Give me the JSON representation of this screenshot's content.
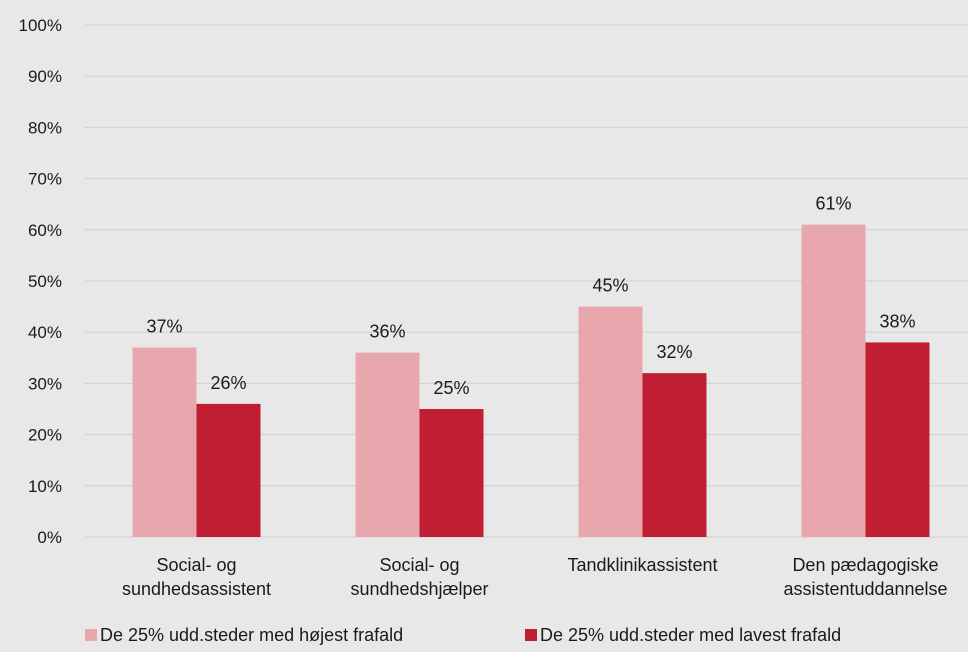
{
  "chart_data": {
    "type": "bar",
    "categories": [
      [
        "Social- og",
        "sundhedsassistent"
      ],
      [
        "Social- og",
        "sundhedshjælper"
      ],
      [
        "Tandklinikassistent"
      ],
      [
        "Den pædagogiske",
        "assistentuddannelse"
      ]
    ],
    "series": [
      {
        "name": "De 25% udd.steder med højest frafald",
        "values": [
          37,
          36,
          45,
          61
        ],
        "labels": [
          "37%",
          "36%",
          "45%",
          "61%"
        ],
        "color": "#e8a7ac"
      },
      {
        "name": "De 25% udd.steder med lavest frafald",
        "values": [
          26,
          25,
          32,
          38
        ],
        "labels": [
          "26%",
          "25%",
          "32%",
          "38%"
        ],
        "color": "#c01f33"
      }
    ],
    "ylim": [
      0,
      100
    ],
    "yticks": [
      "0%",
      "10%",
      "20%",
      "30%",
      "40%",
      "50%",
      "60%",
      "70%",
      "80%",
      "90%",
      "100%"
    ],
    "grid": true,
    "legend": "bottom",
    "gridColor": "#cfcfcf",
    "background": "#e8e8e8"
  }
}
